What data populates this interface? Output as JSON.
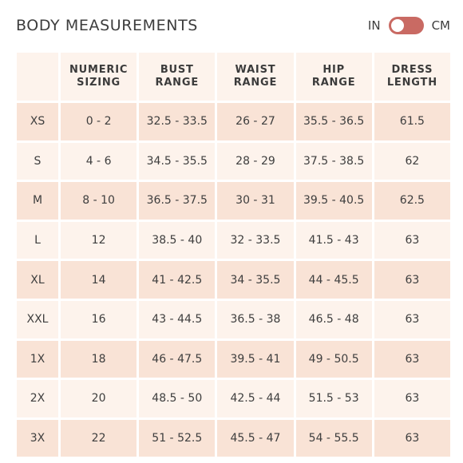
{
  "title": "BODY MEASUREMENTS",
  "unit_toggle": {
    "left_label": "IN",
    "right_label": "CM",
    "accent": "#c96a63"
  },
  "table": {
    "columns": [
      "",
      "NUMERIC\nSIZING",
      "BUST\nRANGE",
      "WAIST\nRANGE",
      "HIP\nRANGE",
      "DRESS\nLENGTH"
    ],
    "rows": [
      [
        "XS",
        "0 - 2",
        "32.5 - 33.5",
        "26 - 27",
        "35.5 - 36.5",
        "61.5"
      ],
      [
        "S",
        "4 - 6",
        "34.5 - 35.5",
        "28 - 29",
        "37.5 - 38.5",
        "62"
      ],
      [
        "M",
        "8 - 10",
        "36.5 - 37.5",
        "30 - 31",
        "39.5 - 40.5",
        "62.5"
      ],
      [
        "L",
        "12",
        "38.5 - 40",
        "32 - 33.5",
        "41.5 - 43",
        "63"
      ],
      [
        "XL",
        "14",
        "41 - 42.5",
        "34 - 35.5",
        "44 - 45.5",
        "63"
      ],
      [
        "XXL",
        "16",
        "43 - 44.5",
        "36.5 - 38",
        "46.5 - 48",
        "63"
      ],
      [
        "1X",
        "18",
        "46 - 47.5",
        "39.5 - 41",
        "49 - 50.5",
        "63"
      ],
      [
        "2X",
        "20",
        "48.5 - 50",
        "42.5 - 44",
        "51.5 - 53",
        "63"
      ],
      [
        "3X",
        "22",
        "51 - 52.5",
        "45.5 - 47",
        "54 - 55.5",
        "63"
      ]
    ],
    "colors": {
      "light_row": "#fdf3ec",
      "dark_row": "#f9e3d6"
    }
  }
}
